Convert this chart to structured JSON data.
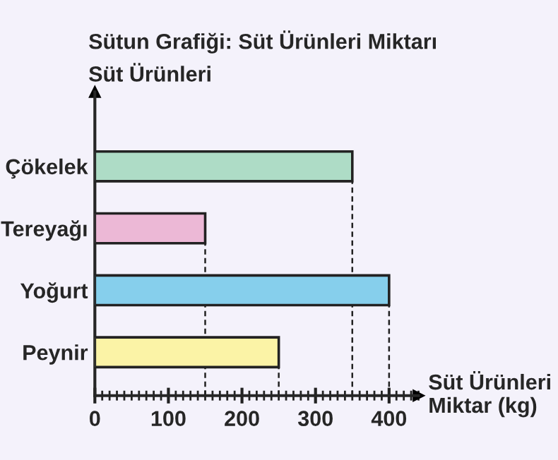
{
  "chart_data": {
    "type": "bar",
    "orientation": "horizontal",
    "title": "Sütun Grafiği: Süt Ürünleri Miktarı",
    "ylabel": "Süt Ürünleri",
    "xlabel": "Süt Ürünleri\nMiktar (kg)",
    "categories": [
      "Çökelek",
      "Tereyağı",
      "Yoğurt",
      "Peynir"
    ],
    "values": [
      350,
      150,
      400,
      250
    ],
    "colors": [
      "#aedcc6",
      "#ecb8d6",
      "#86cfec",
      "#fbf3a6"
    ],
    "xlim": [
      0,
      440
    ],
    "xticks": [
      0,
      100,
      200,
      300,
      400
    ],
    "grid": false,
    "ref_lines": [
      {
        "axis": "x",
        "value": 150,
        "line_style": "dashed",
        "color": "#222222"
      },
      {
        "axis": "x",
        "value": 250,
        "line_style": "dashed",
        "color": "#222222"
      },
      {
        "axis": "x",
        "value": 350,
        "line_style": "dashed",
        "color": "#222222"
      },
      {
        "axis": "x",
        "value": 400,
        "line_style": "dashed",
        "color": "#222222"
      }
    ]
  }
}
